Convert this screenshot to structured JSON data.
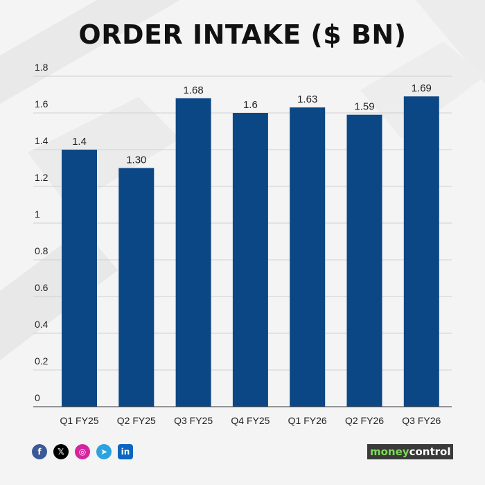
{
  "chart_data": {
    "type": "bar",
    "title": "ORDER INTAKE ($ BN)",
    "categories": [
      "Q1 FY25",
      "Q2 FY25",
      "Q3 FY25",
      "Q4 FY25",
      "Q1 FY26",
      "Q2 FY26",
      "Q3 FY26"
    ],
    "values": [
      1.4,
      1.3,
      1.68,
      1.6,
      1.63,
      1.59,
      1.69
    ],
    "data_labels": [
      "1.4",
      "1.30",
      "1.68",
      "1.6",
      "1.63",
      "1.59",
      "1.69"
    ],
    "yticks": [
      "0",
      "0.2",
      "0.4",
      "0.6",
      "0.8",
      "1",
      "1.2",
      "1.4",
      "1.6",
      "1.8"
    ],
    "ylim": [
      0,
      1.8
    ],
    "grid": true,
    "legend": "none",
    "bar_color": "#0b4785"
  },
  "footer": {
    "social_icons": [
      "facebook-icon",
      "x-icon",
      "instagram-icon",
      "telegram-icon",
      "linkedin-icon"
    ],
    "logo_text_a": "money",
    "logo_text_b": "control"
  }
}
